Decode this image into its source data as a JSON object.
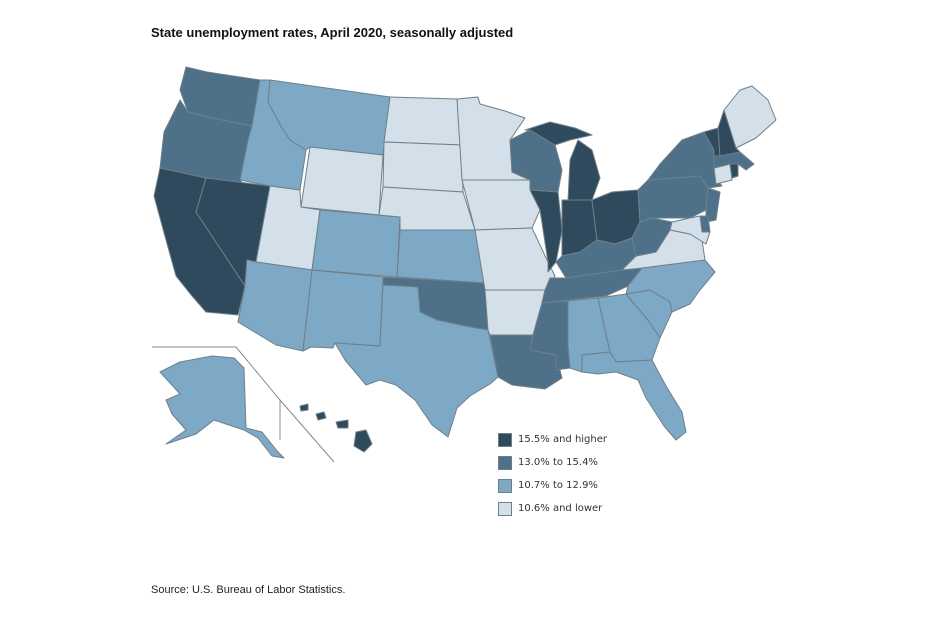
{
  "title": "State unemployment rates, April 2020, seasonally adjusted",
  "source": "Source: U.S. Bureau of Labor Statistics.",
  "legend": [
    {
      "id": "b1",
      "label": "15.5% and higher",
      "color": "#2e4a5c"
    },
    {
      "id": "b2",
      "label": "13.0% to 15.4%",
      "color": "#4e7189"
    },
    {
      "id": "b3",
      "label": "10.7% to 12.9%",
      "color": "#7ea9c6"
    },
    {
      "id": "b4",
      "label": "10.6% and lower",
      "color": "#d4e0e9"
    }
  ],
  "state_bins": {
    "washington": "b2",
    "oregon": "b2",
    "california": "b1",
    "nevada": "b1",
    "idaho": "b3",
    "montana": "b3",
    "wyoming": "b4",
    "utah": "b4",
    "arizona": "b3",
    "colorado": "b3",
    "new-mexico": "b3",
    "north-dakota": "b4",
    "south-dakota": "b4",
    "nebraska": "b4",
    "kansas": "b3",
    "oklahoma": "b2",
    "texas": "b3",
    "minnesota": "b4",
    "iowa": "b4",
    "missouri": "b4",
    "arkansas": "b4",
    "louisiana": "b2",
    "wisconsin": "b2",
    "illinois": "b1",
    "michigan": "b1",
    "indiana": "b1",
    "ohio": "b1",
    "kentucky": "b2",
    "tennessee": "b2",
    "mississippi": "b2",
    "alabama": "b3",
    "georgia": "b3",
    "florida": "b3",
    "south-carolina": "b3",
    "north-carolina": "b3",
    "virginia": "b4",
    "west-virginia": "b2",
    "pennsylvania": "b2",
    "new-york": "b2",
    "new-jersey": "b2",
    "delaware": "b2",
    "maryland": "b4",
    "connecticut": "b4",
    "rhode-island": "b1",
    "massachusetts": "b2",
    "vermont": "b1",
    "new-hampshire": "b1",
    "maine": "b4",
    "alaska": "b3",
    "hawaii": "b1"
  }
}
